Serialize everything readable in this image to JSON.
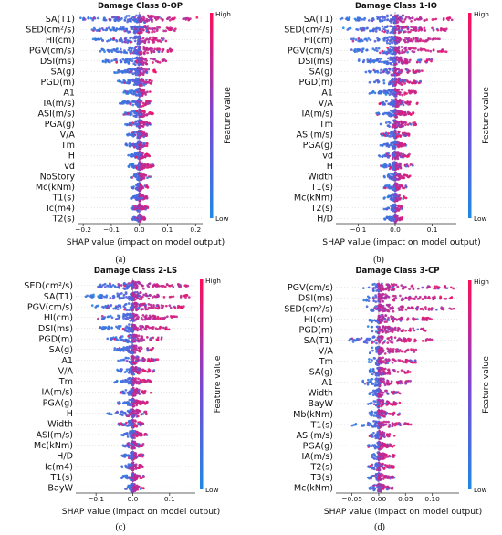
{
  "colors": {
    "low": "#1e88e5",
    "mid": "#7b46d2",
    "high": "#ff0d57"
  },
  "chart_data": [
    {
      "type": "beeswarm",
      "title": "Damage Class 0-OP",
      "panel_label": "(a)",
      "xlabel": "SHAP value (impact on model output)",
      "xlim": [
        -0.22,
        0.225
      ],
      "xticks": [
        -0.2,
        -0.1,
        0.0,
        0.1,
        0.2
      ],
      "xtick_labels": [
        "−0.2",
        "−0.1",
        "0.0",
        "0.1",
        "0.2"
      ],
      "colorbar": {
        "label": "Feature value",
        "high": "High",
        "low": "Low"
      },
      "features": [
        {
          "name": "SA(T1)",
          "min": -0.21,
          "max": 0.21
        },
        {
          "name": "SED(cm²/s)",
          "min": -0.18,
          "max": 0.13
        },
        {
          "name": "HI(cm)",
          "min": -0.17,
          "max": 0.1
        },
        {
          "name": "PGV(cm/s)",
          "min": -0.14,
          "max": 0.12
        },
        {
          "name": "DSI(ms)",
          "min": -0.13,
          "max": 0.1
        },
        {
          "name": "SA(g)",
          "min": -0.09,
          "max": 0.06
        },
        {
          "name": "PGD(m)",
          "min": -0.08,
          "max": 0.05
        },
        {
          "name": "A1",
          "min": -0.06,
          "max": 0.04
        },
        {
          "name": "IA(m/s)",
          "min": -0.07,
          "max": 0.04
        },
        {
          "name": "ASI(m/s)",
          "min": -0.06,
          "max": 0.05
        },
        {
          "name": "PGA(g)",
          "min": -0.05,
          "max": 0.04
        },
        {
          "name": "V/A",
          "min": -0.05,
          "max": 0.03
        },
        {
          "name": "Tm",
          "min": -0.05,
          "max": 0.03
        },
        {
          "name": "H",
          "min": -0.04,
          "max": 0.04
        },
        {
          "name": "vd",
          "min": -0.04,
          "max": 0.05
        },
        {
          "name": "NoStory",
          "min": -0.03,
          "max": 0.04
        },
        {
          "name": "Mc(kNm)",
          "min": -0.03,
          "max": 0.03
        },
        {
          "name": "T1(s)",
          "min": -0.03,
          "max": 0.03
        },
        {
          "name": "Ic(m4)",
          "min": -0.03,
          "max": 0.03
        },
        {
          "name": "T2(s)",
          "min": -0.03,
          "max": 0.02
        }
      ]
    },
    {
      "type": "beeswarm",
      "title": "Damage Class 1-IO",
      "panel_label": "(b)",
      "xlabel": "SHAP value (impact on model output)",
      "xlim": [
        -0.16,
        0.165
      ],
      "xticks": [
        -0.1,
        0.0,
        0.1
      ],
      "xtick_labels": [
        "−0.1",
        "0.0",
        "0.1"
      ],
      "colorbar": {
        "label": "Feature value",
        "high": "High",
        "low": "Low"
      },
      "features": [
        {
          "name": "SA(T1)",
          "min": -0.15,
          "max": 0.16
        },
        {
          "name": "SED(cm²/s)",
          "min": -0.14,
          "max": 0.14
        },
        {
          "name": "HI(cm)",
          "min": -0.12,
          "max": 0.12
        },
        {
          "name": "PGV(cm/s)",
          "min": -0.12,
          "max": 0.14
        },
        {
          "name": "DSI(ms)",
          "min": -0.1,
          "max": 0.1
        },
        {
          "name": "SA(g)",
          "min": -0.08,
          "max": 0.08
        },
        {
          "name": "PGD(m)",
          "min": -0.07,
          "max": 0.07
        },
        {
          "name": "A1",
          "min": -0.07,
          "max": 0.06
        },
        {
          "name": "V/A",
          "min": -0.05,
          "max": 0.06
        },
        {
          "name": "IA(m/s)",
          "min": -0.05,
          "max": 0.05
        },
        {
          "name": "Tm",
          "min": -0.04,
          "max": 0.06
        },
        {
          "name": "ASI(m/s)",
          "min": -0.04,
          "max": 0.04
        },
        {
          "name": "PGA(g)",
          "min": -0.04,
          "max": 0.03
        },
        {
          "name": "vd",
          "min": -0.05,
          "max": 0.04
        },
        {
          "name": "H",
          "min": -0.04,
          "max": 0.05
        },
        {
          "name": "Width",
          "min": -0.03,
          "max": 0.04
        },
        {
          "name": "T1(s)",
          "min": -0.03,
          "max": 0.03
        },
        {
          "name": "Mc(kNm)",
          "min": -0.03,
          "max": 0.03
        },
        {
          "name": "T2(s)",
          "min": -0.03,
          "max": 0.02
        },
        {
          "name": "H/D",
          "min": -0.03,
          "max": 0.02
        }
      ]
    },
    {
      "type": "beeswarm",
      "title": "Damage Class 2-LS",
      "panel_label": "(c)",
      "xlabel": "SHAP value (impact on model output)",
      "xlim": [
        -0.155,
        0.17
      ],
      "xticks": [
        -0.1,
        0.0,
        0.1
      ],
      "xtick_labels": [
        "−0.1",
        "0.0",
        "0.1"
      ],
      "colorbar": {
        "label": "Feature value",
        "high": "High",
        "low": "Low"
      },
      "features": [
        {
          "name": "SED(cm²/s)",
          "min": -0.12,
          "max": 0.15
        },
        {
          "name": "SA(T1)",
          "min": -0.13,
          "max": 0.16
        },
        {
          "name": "PGV(cm/s)",
          "min": -0.11,
          "max": 0.14
        },
        {
          "name": "HI(cm)",
          "min": -0.1,
          "max": 0.12
        },
        {
          "name": "DSI(ms)",
          "min": -0.09,
          "max": 0.1
        },
        {
          "name": "PGD(m)",
          "min": -0.07,
          "max": 0.08
        },
        {
          "name": "SA(g)",
          "min": -0.05,
          "max": 0.06
        },
        {
          "name": "A1",
          "min": -0.04,
          "max": 0.07
        },
        {
          "name": "V/A",
          "min": -0.05,
          "max": 0.06
        },
        {
          "name": "Tm",
          "min": -0.05,
          "max": 0.05
        },
        {
          "name": "IA(m/s)",
          "min": -0.04,
          "max": 0.05
        },
        {
          "name": "PGA(g)",
          "min": -0.04,
          "max": 0.04
        },
        {
          "name": "H",
          "min": -0.07,
          "max": 0.04
        },
        {
          "name": "Width",
          "min": -0.04,
          "max": 0.03
        },
        {
          "name": "ASI(m/s)",
          "min": -0.03,
          "max": 0.04
        },
        {
          "name": "Mc(kNm)",
          "min": -0.03,
          "max": 0.03
        },
        {
          "name": "H/D",
          "min": -0.03,
          "max": 0.03
        },
        {
          "name": "Ic(m4)",
          "min": -0.03,
          "max": 0.03
        },
        {
          "name": "T1(s)",
          "min": -0.03,
          "max": 0.03
        },
        {
          "name": "BayW",
          "min": -0.02,
          "max": 0.03
        }
      ]
    },
    {
      "type": "beeswarm",
      "title": "Damage Class 3-CP",
      "panel_label": "(d)",
      "xlabel": "SHAP value (impact on model output)",
      "xlim": [
        -0.08,
        0.15
      ],
      "xticks": [
        -0.05,
        0.0,
        0.05,
        0.1
      ],
      "xtick_labels": [
        "−0.05",
        "0.00",
        "0.05",
        "0.10"
      ],
      "colorbar": {
        "label": "Feature value",
        "high": "High",
        "low": "Low"
      },
      "features": [
        {
          "name": "PGV(cm/s)",
          "min": -0.03,
          "max": 0.14
        },
        {
          "name": "DSI(ms)",
          "min": -0.03,
          "max": 0.14
        },
        {
          "name": "SED(cm²/s)",
          "min": -0.03,
          "max": 0.14
        },
        {
          "name": "HI(cm)",
          "min": -0.02,
          "max": 0.1
        },
        {
          "name": "PGD(m)",
          "min": -0.02,
          "max": 0.09
        },
        {
          "name": "SA(T1)",
          "min": -0.06,
          "max": 0.1
        },
        {
          "name": "V/A",
          "min": -0.02,
          "max": 0.07
        },
        {
          "name": "Tm",
          "min": -0.02,
          "max": 0.07
        },
        {
          "name": "SA(g)",
          "min": -0.02,
          "max": 0.06
        },
        {
          "name": "A1",
          "min": -0.03,
          "max": 0.06
        },
        {
          "name": "Width",
          "min": -0.02,
          "max": 0.04
        },
        {
          "name": "BayW",
          "min": -0.02,
          "max": 0.04
        },
        {
          "name": "Mb(kNm)",
          "min": -0.02,
          "max": 0.04
        },
        {
          "name": "T1(s)",
          "min": -0.05,
          "max": 0.06
        },
        {
          "name": "ASI(m/s)",
          "min": -0.02,
          "max": 0.03
        },
        {
          "name": "PGA(g)",
          "min": -0.02,
          "max": 0.03
        },
        {
          "name": "IA(m/s)",
          "min": -0.02,
          "max": 0.03
        },
        {
          "name": "T2(s)",
          "min": -0.02,
          "max": 0.03
        },
        {
          "name": "T3(s)",
          "min": -0.02,
          "max": 0.03
        },
        {
          "name": "Mc(kNm)",
          "min": -0.02,
          "max": 0.03
        }
      ]
    }
  ]
}
